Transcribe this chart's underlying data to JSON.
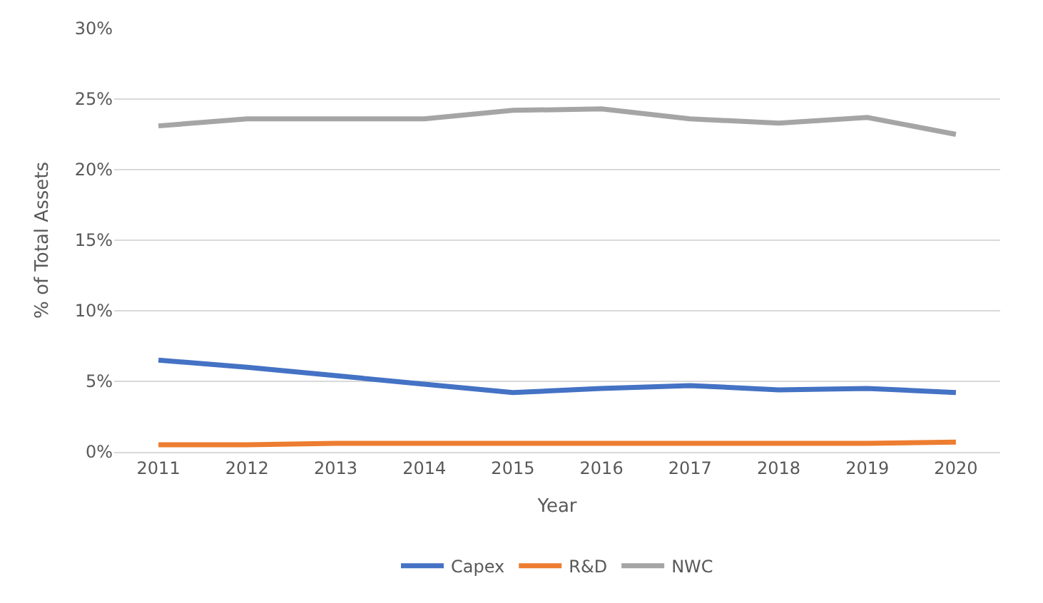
{
  "chart_data": {
    "type": "line",
    "xlabel": "Year",
    "ylabel": "% of Total Assets",
    "categories": [
      "2011",
      "2012",
      "2013",
      "2014",
      "2015",
      "2016",
      "2017",
      "2018",
      "2019",
      "2020"
    ],
    "series": [
      {
        "name": "Capex",
        "color": "#4472c4",
        "values": [
          6.5,
          6.0,
          5.4,
          4.8,
          4.2,
          4.5,
          4.7,
          4.4,
          4.5,
          4.2
        ]
      },
      {
        "name": "R&D",
        "color": "#ed7d31",
        "values": [
          0.5,
          0.5,
          0.6,
          0.6,
          0.6,
          0.6,
          0.6,
          0.6,
          0.6,
          0.7
        ]
      },
      {
        "name": "NWC",
        "color": "#a5a5a5",
        "values": [
          23.1,
          23.6,
          23.6,
          23.6,
          24.2,
          24.3,
          23.6,
          23.3,
          23.7,
          22.5
        ]
      }
    ],
    "ylim": [
      0,
      30
    ],
    "yticks": [
      {
        "value": 0,
        "label": "0%"
      },
      {
        "value": 5,
        "label": "5%"
      },
      {
        "value": 10,
        "label": "10%"
      },
      {
        "value": 15,
        "label": "15%"
      },
      {
        "value": 20,
        "label": "20%"
      },
      {
        "value": 25,
        "label": "25%"
      },
      {
        "value": 30,
        "label": "30%"
      }
    ],
    "grid": "y",
    "legend": "bottom",
    "marker": "none",
    "line_style": "solid"
  }
}
